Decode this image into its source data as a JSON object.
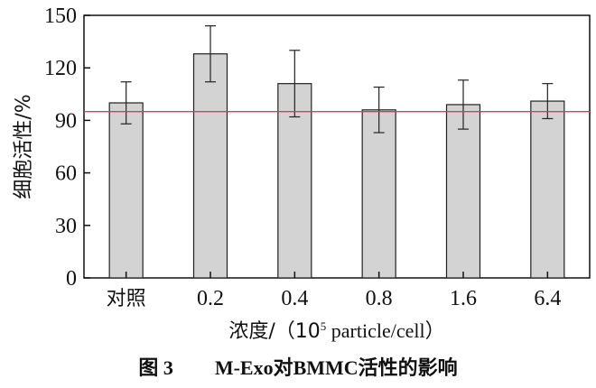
{
  "caption": {
    "figure_number": "图 3",
    "title": "M-Exo对BMMC活性的影响"
  },
  "chart_data": {
    "type": "bar",
    "categories": [
      "对照",
      "0.2",
      "0.4",
      "0.8",
      "1.6",
      "6.4"
    ],
    "values": [
      100,
      128,
      111,
      96,
      99,
      101
    ],
    "error_plus": [
      12,
      16,
      19,
      13,
      14,
      10
    ],
    "error_minus": [
      12,
      16,
      19,
      13,
      14,
      10
    ],
    "reference_line": 95,
    "xlabel_prefix": "浓度/（10",
    "xlabel_sup": "5",
    "xlabel_suffix": " particle/cell）",
    "ylabel": "细胞活性/%",
    "ylim": [
      0,
      150
    ],
    "yticks": [
      0,
      30,
      60,
      90,
      120,
      150
    ],
    "bar_color": "#d3d3d3",
    "reference_line_color": "#e03a4a",
    "grid": false,
    "legend": "none"
  }
}
